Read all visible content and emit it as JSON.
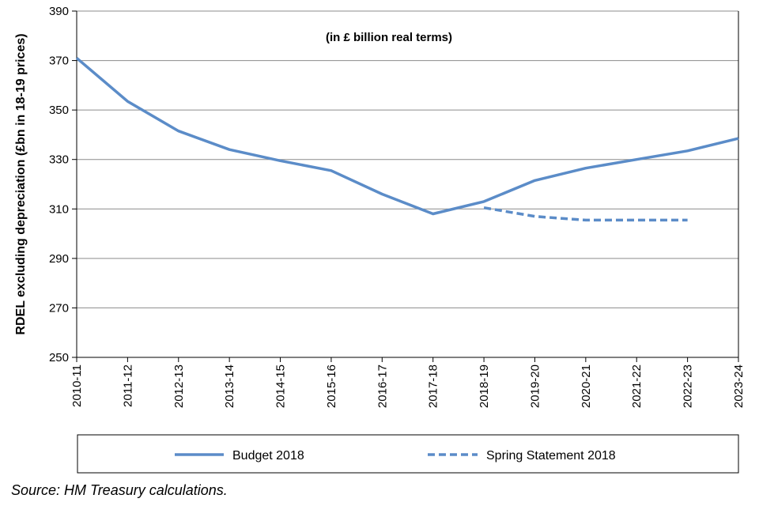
{
  "chart_data": {
    "type": "line",
    "title": "",
    "subtitle": "(in £ billion real terms)",
    "xlabel": "",
    "ylabel": "RDEL excluding depreciation (£bn in 18-19 prices)",
    "ylim": [
      250,
      390
    ],
    "yticks": [
      250,
      270,
      290,
      310,
      330,
      350,
      370,
      390
    ],
    "grid": true,
    "categories": [
      "2010-11",
      "2011-12",
      "2012-13",
      "2013-14",
      "2014-15",
      "2015-16",
      "2016-17",
      "2017-18",
      "2018-19",
      "2019-20",
      "2020-21",
      "2021-22",
      "2022-23",
      "2023-24"
    ],
    "series": [
      {
        "name": "Budget 2018",
        "style": "solid",
        "color": "#5b8cc8",
        "values": [
          371,
          353.5,
          341.5,
          334,
          329.5,
          325.5,
          316,
          308,
          313,
          321.5,
          326.5,
          330,
          333.5,
          338.5
        ]
      },
      {
        "name": "Spring Statement 2018",
        "style": "dashed",
        "color": "#5b8cc8",
        "values": [
          null,
          null,
          null,
          null,
          null,
          null,
          null,
          null,
          310.5,
          307,
          305.5,
          305.5,
          305.5,
          null
        ]
      }
    ],
    "legend_position": "bottom"
  },
  "source": "Source: HM Treasury calculations."
}
